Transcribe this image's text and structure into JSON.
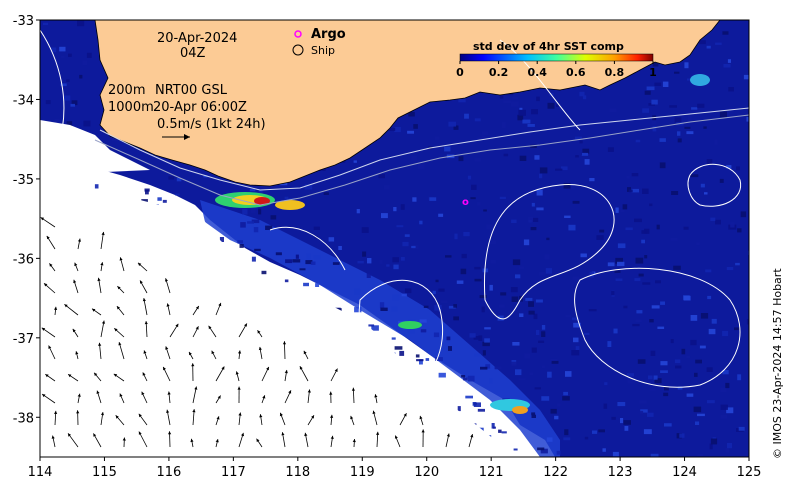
{
  "map": {
    "x_ticks": [
      "114",
      "115",
      "116",
      "117",
      "118",
      "119",
      "120",
      "121",
      "122",
      "123",
      "124",
      "125"
    ],
    "y_ticks": [
      "-33",
      "-34",
      "-35",
      "-36",
      "-37",
      "-38"
    ],
    "lon_range": [
      114,
      125
    ],
    "lat_range": [
      -33,
      -38.5
    ]
  },
  "annotations": {
    "date": "20-Apr-2024",
    "time": "04Z",
    "contour_200": "200m",
    "product": "NRT00 GSL",
    "contour_1000": "1000m",
    "product_time": "20-Apr 06:00Z",
    "vector_scale": "0.5m/s (1kt 24h)"
  },
  "legend": {
    "argo_label": "Argo",
    "argo_symbol": "o",
    "ship_label": "Ship"
  },
  "colorbar": {
    "title": "std dev of 4hr SST comp",
    "ticks": [
      "0",
      "0.2",
      "0.4",
      "0.6",
      "0.8",
      "1"
    ]
  },
  "credit": "© IMOS 23-Apr-2024 14:57 Hobart",
  "colors": {
    "land": "#fccb95",
    "ocean_deep": "#0a1590",
    "ocean_mid": "#1a3ec8",
    "argo": "#ff00ff"
  }
}
